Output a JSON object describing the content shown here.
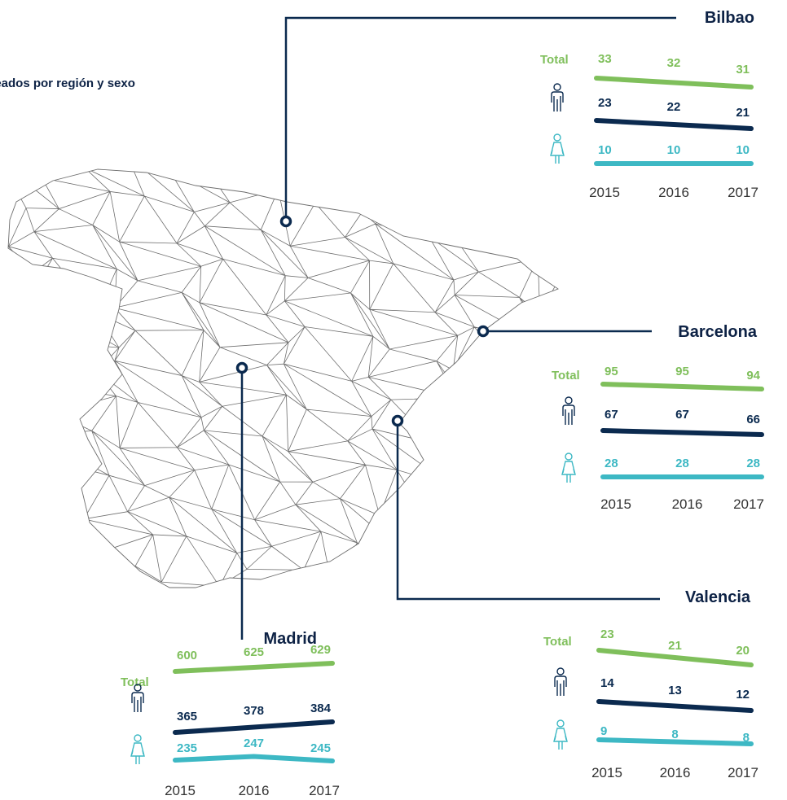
{
  "heading": "pleados por región y sexo",
  "colors": {
    "total": "#7fbf5b",
    "men": "#0b2a4f",
    "women": "#3db8c4",
    "mesh": "#6e6e6e",
    "leader": "#0b2a4f"
  },
  "icons": {
    "men": "man-icon",
    "women": "woman-icon",
    "marker": "ring-marker-icon"
  },
  "chart_data": [
    {
      "type": "line",
      "city": "Bilbao",
      "x": [
        "2015",
        "2016",
        "2017"
      ],
      "series": [
        {
          "name": "Total",
          "values": [
            33,
            32,
            31
          ]
        },
        {
          "name": "",
          "group": "men",
          "values": [
            23,
            22,
            21
          ]
        },
        {
          "name": "",
          "group": "women",
          "values": [
            10,
            10,
            10
          ]
        }
      ]
    },
    {
      "type": "line",
      "city": "Barcelona",
      "x": [
        "2015",
        "2016",
        "2017"
      ],
      "series": [
        {
          "name": "Total",
          "values": [
            95,
            95,
            94
          ]
        },
        {
          "name": "",
          "group": "men",
          "values": [
            67,
            67,
            66
          ]
        },
        {
          "name": "",
          "group": "women",
          "values": [
            28,
            28,
            28
          ]
        }
      ]
    },
    {
      "type": "line",
      "city": "Madrid",
      "x": [
        "2015",
        "2016",
        "2017"
      ],
      "series": [
        {
          "name": "Total",
          "values": [
            600,
            625,
            629
          ]
        },
        {
          "name": "",
          "group": "men",
          "values": [
            365,
            378,
            384
          ]
        },
        {
          "name": "",
          "group": "women",
          "values": [
            235,
            247,
            245
          ]
        }
      ]
    },
    {
      "type": "line",
      "city": "Valencia",
      "x": [
        "2015",
        "2016",
        "2017"
      ],
      "series": [
        {
          "name": "Total",
          "values": [
            23,
            21,
            20
          ]
        },
        {
          "name": "",
          "group": "men",
          "values": [
            14,
            13,
            12
          ]
        },
        {
          "name": "",
          "group": "women",
          "values": [
            9,
            8,
            8
          ]
        }
      ]
    }
  ]
}
